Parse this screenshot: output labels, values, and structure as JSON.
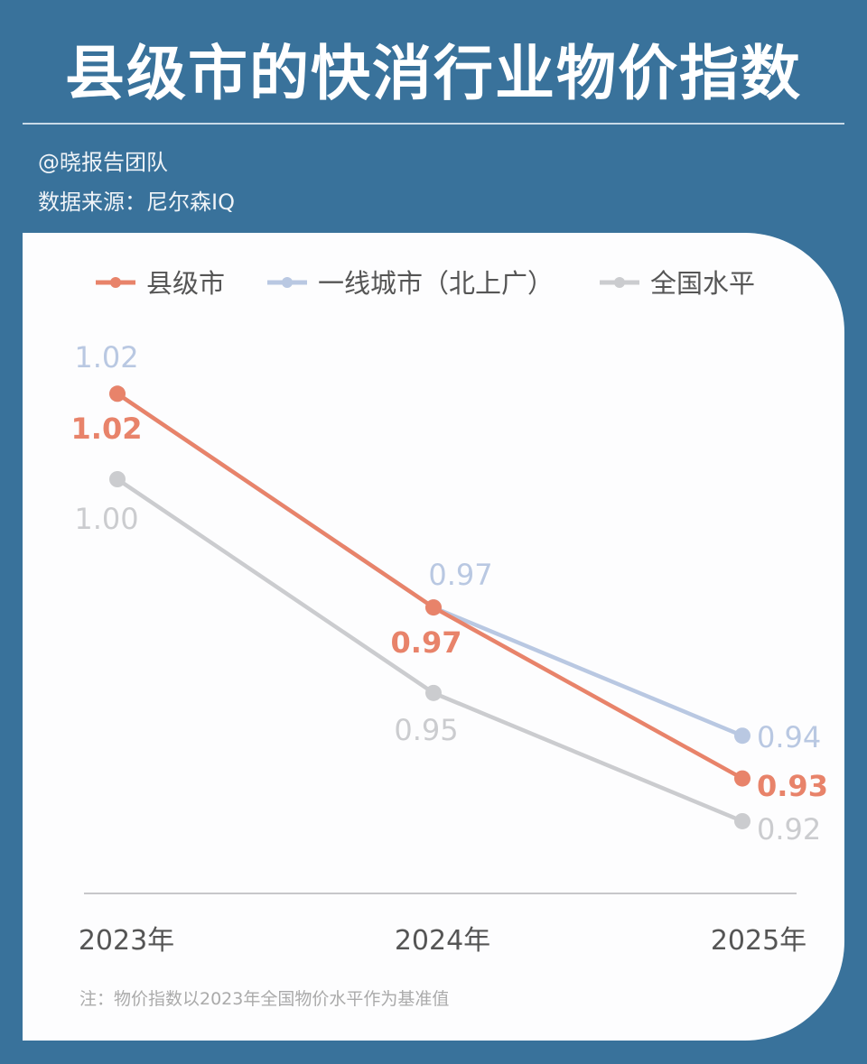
{
  "header": {
    "title": "县级市的快消行业物价指数",
    "author": "@晓报告团队",
    "source": "数据来源：尼尔森IQ"
  },
  "chart_data": {
    "type": "line",
    "categories": [
      "2023年",
      "2024年",
      "2025年"
    ],
    "series": [
      {
        "name": "县级市",
        "values": [
          1.02,
          0.97,
          0.93
        ],
        "color": "#e8836a"
      },
      {
        "name": "一线城市（北上广）",
        "values": [
          1.02,
          0.97,
          0.94
        ],
        "color": "#b9c8e2"
      },
      {
        "name": "全国水平",
        "values": [
          1.0,
          0.95,
          0.92
        ],
        "color": "#cbcccf"
      }
    ],
    "legend_position": "top",
    "grid": false,
    "note": "注：物价指数以2023年全国物价水平作为基准值"
  }
}
